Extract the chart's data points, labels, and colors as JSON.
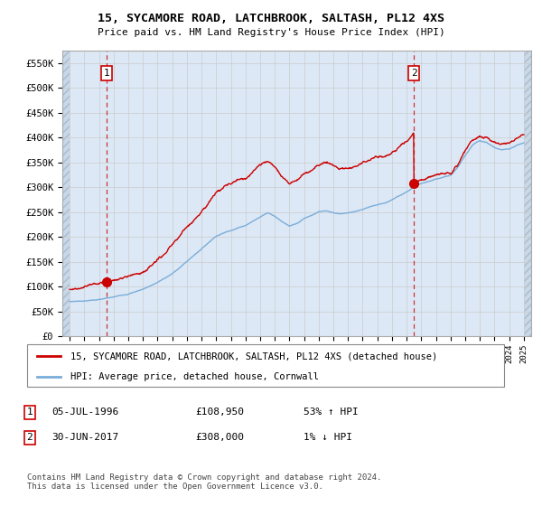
{
  "title": "15, SYCAMORE ROAD, LATCHBROOK, SALTASH, PL12 4XS",
  "subtitle": "Price paid vs. HM Land Registry's House Price Index (HPI)",
  "legend_line1": "15, SYCAMORE ROAD, LATCHBROOK, SALTASH, PL12 4XS (detached house)",
  "legend_line2": "HPI: Average price, detached house, Cornwall",
  "footnote": "Contains HM Land Registry data © Crown copyright and database right 2024.\nThis data is licensed under the Open Government Licence v3.0.",
  "sale1_label": "1",
  "sale1_date": "05-JUL-1996",
  "sale1_price": "£108,950",
  "sale1_hpi": "53% ↑ HPI",
  "sale2_label": "2",
  "sale2_date": "30-JUN-2017",
  "sale2_price": "£308,000",
  "sale2_hpi": "1% ↓ HPI",
  "sale1_year": 1996.5,
  "sale1_value": 108950,
  "sale2_year": 2017.5,
  "sale2_value": 308000,
  "ylim": [
    0,
    575000
  ],
  "xlim_start": 1993.5,
  "xlim_end": 2025.5,
  "yticks": [
    0,
    50000,
    100000,
    150000,
    200000,
    250000,
    300000,
    350000,
    400000,
    450000,
    500000,
    550000
  ],
  "ytick_labels": [
    "£0",
    "£50K",
    "£100K",
    "£150K",
    "£200K",
    "£250K",
    "£300K",
    "£350K",
    "£400K",
    "£450K",
    "£500K",
    "£550K"
  ],
  "xticks": [
    1994,
    1995,
    1996,
    1997,
    1998,
    1999,
    2000,
    2001,
    2002,
    2003,
    2004,
    2005,
    2006,
    2007,
    2008,
    2009,
    2010,
    2011,
    2012,
    2013,
    2014,
    2015,
    2016,
    2017,
    2018,
    2019,
    2020,
    2021,
    2022,
    2023,
    2024,
    2025
  ],
  "hpi_color": "#7aadda",
  "price_color": "#cc0000",
  "dashed_color": "#cc3333",
  "marker_color": "#cc0000",
  "grid_color": "#cccccc",
  "hatch_color": "#c8d8e8",
  "bg_color": "#dce8f5",
  "box_color": "#cc0000"
}
